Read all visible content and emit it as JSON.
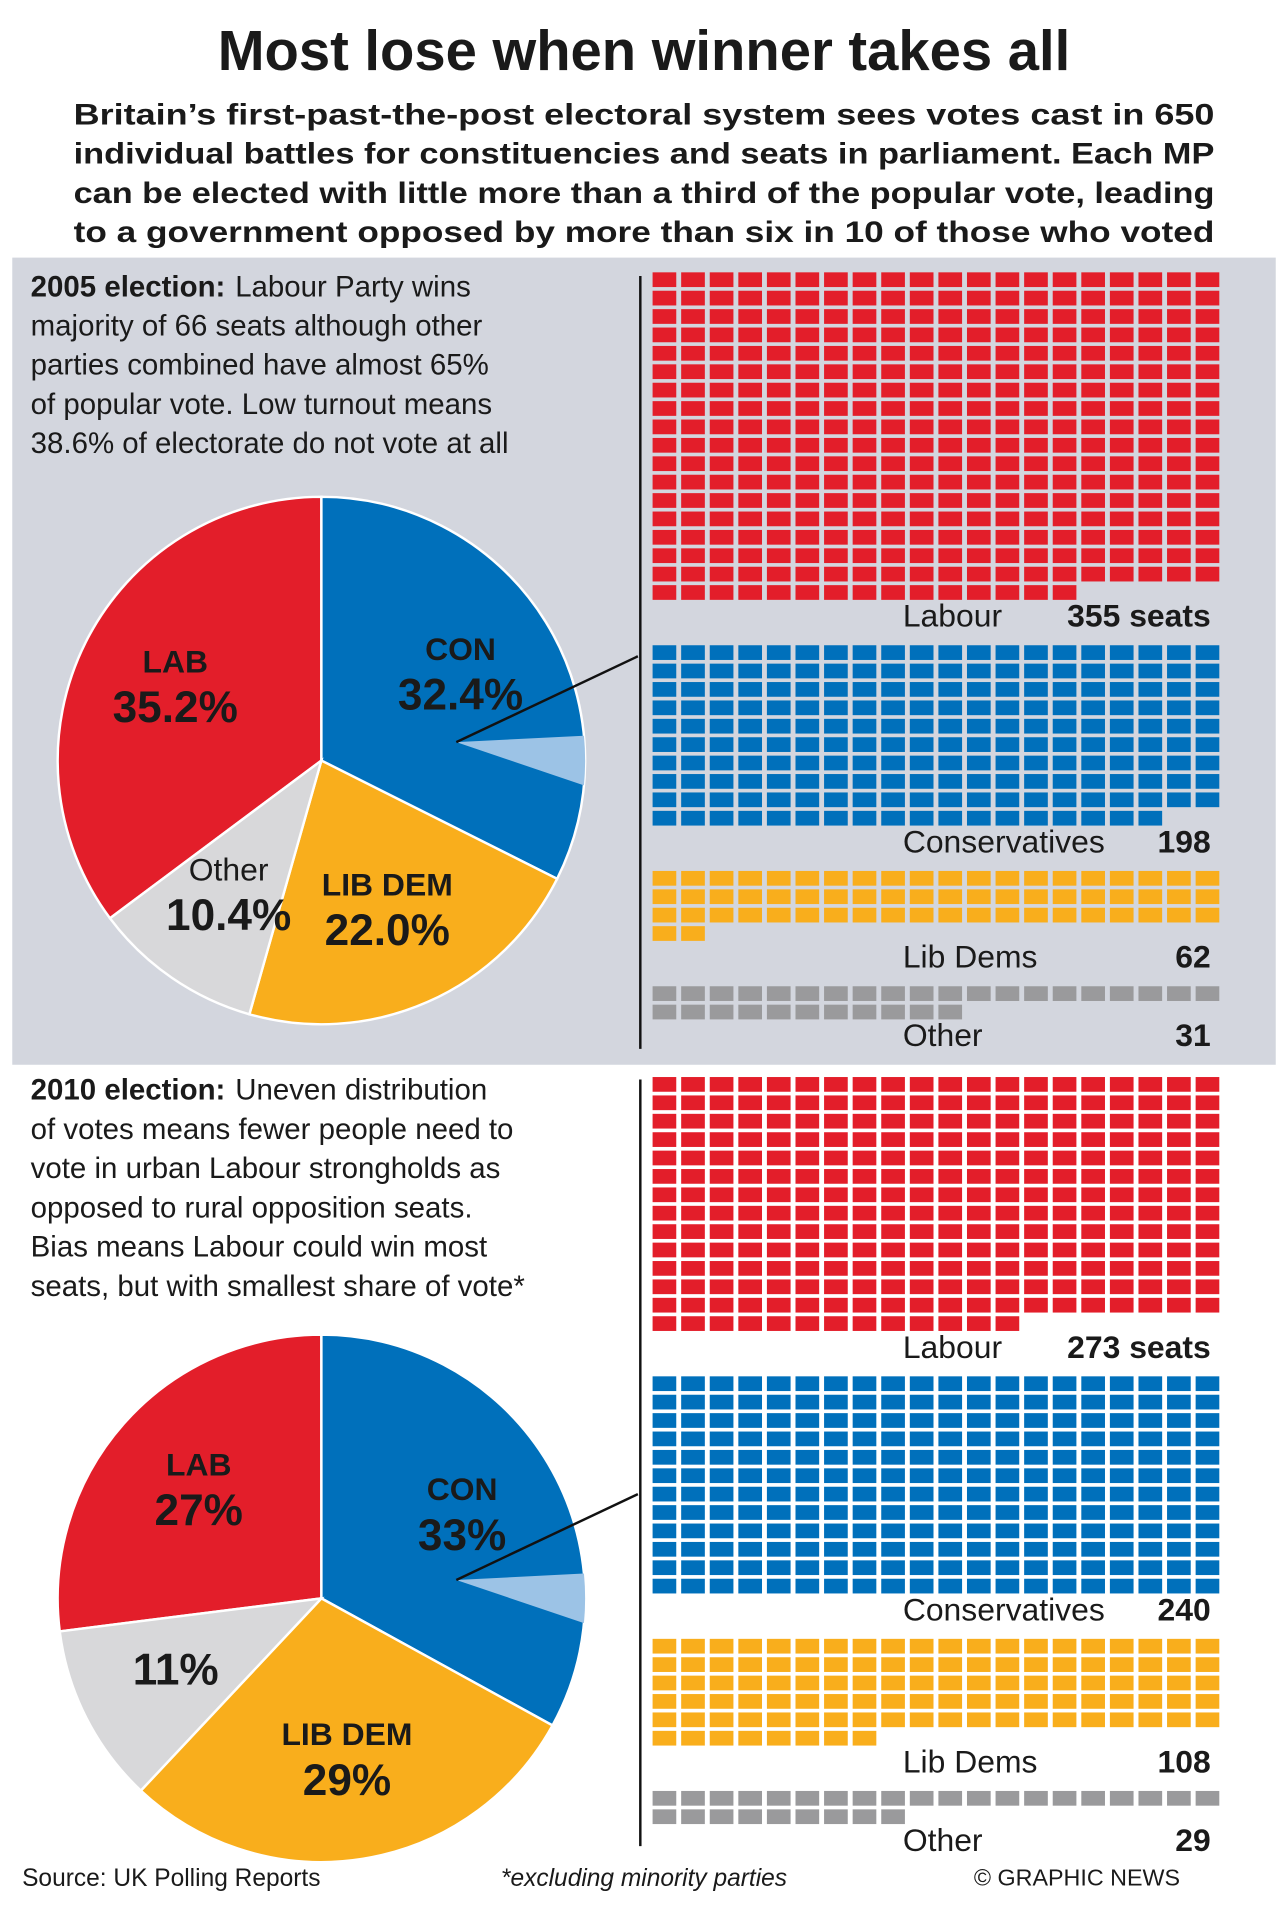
{
  "title": "Most lose when winner takes all",
  "subtitle": [
    "Britain’s first-past-the-post electoral system sees votes cast in 650",
    "individual battles for constituencies and seats in parliament. Each MP",
    "can be elected with little more than a third of the popular vote, leading",
    "to a government opposed by more than six in 10 of those who voted"
  ],
  "source": "Source: UK Polling Reports",
  "note": "*excluding minority parties",
  "credit": "© GRAPHIC NEWS",
  "chart_data": [
    {
      "type": "pie",
      "heading": "2005 election:",
      "text": [
        "Labour Party wins",
        "majority of 66 seats although other",
        "parties combined have almost 65%",
        "of popular vote. Low turnout means",
        "38.6% of electorate do not vote at all"
      ],
      "categories": [
        "LAB",
        "CON",
        "LIB DEM",
        "Other"
      ],
      "values": [
        35.2,
        32.4,
        22.0,
        10.4
      ],
      "value_labels": [
        "35.2%",
        "32.4%",
        "22.0%",
        "10.4%"
      ],
      "colors": [
        "#e31e2a",
        "#0070bb",
        "#f9ae1c",
        "#d8d8da"
      ]
    },
    {
      "type": "waffle",
      "categories": [
        "Labour",
        "Conservatives",
        "Lib Dems",
        "Other"
      ],
      "values": [
        355,
        198,
        62,
        31
      ],
      "value_labels": [
        "355 seats",
        "198",
        "62",
        "31"
      ],
      "colors": [
        "#e31e2a",
        "#0070bb",
        "#f9ae1c",
        "#9a9a9c"
      ]
    },
    {
      "type": "pie",
      "heading": "2010 election:",
      "text": [
        "Uneven distribution",
        "of votes means fewer people need to",
        "vote in urban Labour strongholds as",
        "opposed to rural opposition seats.",
        "Bias means Labour could win most",
        "seats, but with smallest share of vote*"
      ],
      "categories": [
        "LAB",
        "CON",
        "LIB DEM",
        null
      ],
      "values": [
        27,
        33,
        29,
        11
      ],
      "value_labels": [
        "27%",
        "33%",
        "29%",
        "11%"
      ],
      "colors": [
        "#e31e2a",
        "#0070bb",
        "#f9ae1c",
        "#d8d8da"
      ]
    },
    {
      "type": "waffle",
      "categories": [
        "Labour",
        "Conservatives",
        "Lib Dems",
        "Other"
      ],
      "values": [
        273,
        240,
        108,
        29
      ],
      "value_labels": [
        "273 seats",
        "240",
        "108",
        "29"
      ],
      "colors": [
        "#e31e2a",
        "#0070bb",
        "#f9ae1c",
        "#9a9a9c"
      ]
    }
  ]
}
